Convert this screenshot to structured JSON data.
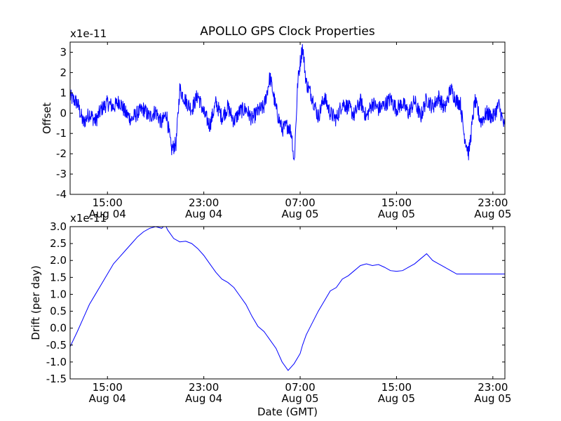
{
  "figure": {
    "title": "APOLLO GPS Clock Properties"
  },
  "chart_data": [
    {
      "type": "line",
      "ylabel": "Offset",
      "xlabel": "",
      "scale_label": "x1e-11",
      "ylim": [
        -4,
        3.5
      ],
      "xlim_hours": [
        11.9,
        48.0
      ],
      "yticks": [
        -4,
        -3,
        -2,
        -1,
        0,
        1,
        2,
        3
      ],
      "ytick_labels": [
        "-4",
        "-3",
        "-2",
        "-1",
        "0",
        "1",
        "2",
        "3"
      ],
      "xticks": [
        {
          "hour": 15,
          "line1": "15:00",
          "line2": "Aug 04"
        },
        {
          "hour": 23,
          "line1": "23:00",
          "line2": "Aug 04"
        },
        {
          "hour": 31,
          "line1": "07:00",
          "line2": "Aug 05"
        },
        {
          "hour": 39,
          "line1": "15:00",
          "line2": "Aug 05"
        },
        {
          "hour": 47,
          "line1": "23:00",
          "line2": "Aug 05"
        }
      ],
      "series": [
        {
          "color": "#0000ff",
          "x": [
            11.9,
            12.5,
            13.0,
            13.5,
            14.0,
            14.5,
            15.0,
            15.5,
            16.0,
            16.5,
            17.0,
            17.5,
            18.0,
            18.5,
            19.0,
            19.5,
            19.9,
            20.3,
            20.7,
            21.0,
            21.5,
            22.0,
            22.5,
            23.0,
            23.5,
            24.0,
            24.5,
            25.0,
            25.5,
            26.0,
            26.5,
            27.0,
            27.5,
            28.0,
            28.5,
            29.0,
            29.5,
            30.0,
            30.3,
            30.5,
            30.8,
            31.0,
            31.2,
            31.5,
            32.0,
            32.5,
            33.0,
            33.5,
            34.0,
            34.5,
            35.0,
            35.5,
            36.0,
            36.5,
            37.0,
            37.5,
            38.0,
            38.5,
            39.0,
            39.5,
            40.0,
            40.5,
            41.0,
            41.5,
            42.0,
            42.5,
            43.0,
            43.5,
            44.0,
            44.3,
            44.6,
            45.0,
            45.5,
            46.0,
            46.5,
            47.0,
            47.5,
            48.0
          ],
          "y": [
            0.8,
            0.5,
            -0.5,
            0.0,
            -0.4,
            0.2,
            0.5,
            0.3,
            0.6,
            0.0,
            -0.3,
            0.0,
            0.2,
            -0.2,
            0.1,
            -0.5,
            0.0,
            -1.8,
            -1.5,
            1.2,
            0.6,
            0.2,
            0.9,
            0.0,
            -0.6,
            0.5,
            -0.2,
            0.3,
            -0.4,
            0.1,
            0.2,
            -0.3,
            0.1,
            0.3,
            1.8,
            0.2,
            -0.8,
            -0.6,
            -1.0,
            -2.5,
            1.5,
            2.5,
            3.3,
            1.5,
            0.8,
            -0.2,
            0.8,
            0.0,
            -0.3,
            0.5,
            0.3,
            -0.1,
            0.6,
            -0.2,
            0.5,
            0.2,
            0.4,
            0.7,
            0.2,
            0.5,
            0.0,
            0.6,
            -0.2,
            0.7,
            0.3,
            0.8,
            0.2,
            1.2,
            0.6,
            0.5,
            -1.0,
            -2.0,
            0.6,
            -0.4,
            0.0,
            -0.2,
            0.4,
            -0.8
          ],
          "noise_amplitude": 0.4
        }
      ]
    },
    {
      "type": "line",
      "ylabel": "Drift (per day)",
      "xlabel": "Date (GMT)",
      "scale_label": "x1e-11",
      "ylim": [
        -1.5,
        3.0
      ],
      "xlim_hours": [
        11.9,
        48.0
      ],
      "yticks": [
        -1.5,
        -1.0,
        -0.5,
        0.0,
        0.5,
        1.0,
        1.5,
        2.0,
        2.5,
        3.0
      ],
      "ytick_labels": [
        "-1.5",
        "-1.0",
        "-0.5",
        "0.0",
        "0.5",
        "1.0",
        "1.5",
        "2.0",
        "2.5",
        "3.0"
      ],
      "xticks": [
        {
          "hour": 15,
          "line1": "15:00",
          "line2": "Aug 04"
        },
        {
          "hour": 23,
          "line1": "23:00",
          "line2": "Aug 04"
        },
        {
          "hour": 31,
          "line1": "07:00",
          "line2": "Aug 05"
        },
        {
          "hour": 39,
          "line1": "15:00",
          "line2": "Aug 05"
        },
        {
          "hour": 47,
          "line1": "23:00",
          "line2": "Aug 05"
        }
      ],
      "series": [
        {
          "color": "#0000ff",
          "x": [
            11.9,
            12.5,
            13.0,
            13.5,
            14.0,
            14.5,
            15.0,
            15.5,
            16.0,
            16.5,
            17.0,
            17.5,
            18.0,
            18.5,
            19.0,
            19.5,
            19.8,
            20.0,
            20.5,
            21.0,
            21.5,
            22.0,
            22.5,
            23.0,
            23.5,
            24.0,
            24.5,
            25.0,
            25.5,
            26.0,
            26.5,
            27.0,
            27.5,
            28.0,
            28.5,
            29.0,
            29.5,
            30.0,
            30.5,
            31.0,
            31.2,
            31.5,
            32.0,
            32.5,
            33.0,
            33.5,
            34.0,
            34.5,
            35.0,
            35.5,
            36.0,
            36.5,
            37.0,
            37.5,
            38.0,
            38.5,
            39.0,
            39.5,
            40.0,
            40.5,
            41.0,
            41.5,
            42.0,
            42.5,
            43.0,
            43.5,
            44.0,
            44.5,
            45.0,
            45.5,
            46.0,
            46.5,
            47.0,
            47.5,
            48.0
          ],
          "y": [
            -0.55,
            -0.1,
            0.3,
            0.7,
            1.0,
            1.3,
            1.6,
            1.9,
            2.1,
            2.3,
            2.5,
            2.7,
            2.85,
            2.95,
            3.0,
            2.95,
            3.05,
            2.9,
            2.65,
            2.55,
            2.57,
            2.5,
            2.35,
            2.15,
            1.9,
            1.65,
            1.45,
            1.35,
            1.2,
            0.95,
            0.7,
            0.35,
            0.05,
            -0.1,
            -0.35,
            -0.6,
            -1.0,
            -1.25,
            -1.05,
            -0.75,
            -0.5,
            -0.2,
            0.15,
            0.5,
            0.8,
            1.1,
            1.2,
            1.45,
            1.55,
            1.7,
            1.85,
            1.9,
            1.85,
            1.88,
            1.8,
            1.7,
            1.68,
            1.7,
            1.8,
            1.9,
            2.05,
            2.2,
            2.0,
            1.9,
            1.8,
            1.7,
            1.6,
            1.6,
            1.6,
            1.6,
            1.6,
            1.6,
            1.6,
            1.6,
            1.6
          ],
          "noise_amplitude": 0.0
        }
      ]
    }
  ]
}
